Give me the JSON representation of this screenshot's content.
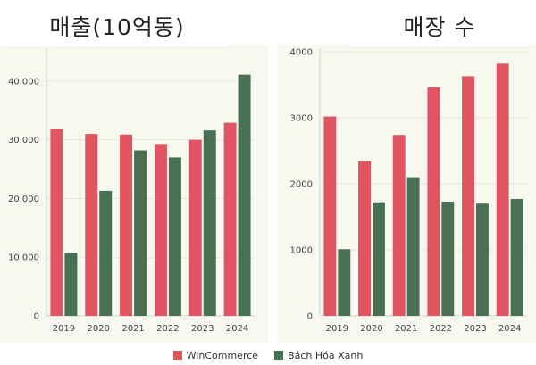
{
  "colors": {
    "wincommerce": "#e05561",
    "bachhoaxanh": "#4a7054",
    "grid": "#e4e7dd",
    "panel_bg": "#f7f9f1"
  },
  "legend": {
    "series1": "WinCommerce",
    "series2": "Bách Hóa Xanh"
  },
  "chart_data": [
    {
      "type": "bar",
      "title": "매출(10억동)",
      "categories": [
        "2019",
        "2020",
        "2021",
        "2022",
        "2023",
        "2024"
      ],
      "series": [
        {
          "name": "WinCommerce",
          "values": [
            31900,
            31000,
            30900,
            29300,
            30000,
            32900
          ]
        },
        {
          "name": "Bách Hóa Xanh",
          "values": [
            10800,
            21300,
            28200,
            27000,
            31600,
            41100
          ]
        }
      ],
      "ylim": [
        0,
        45000
      ],
      "yticks": [
        0,
        10000,
        20000,
        30000,
        40000
      ],
      "ytick_labels": [
        "0",
        "10.000",
        "20.000",
        "30.000",
        "40.000"
      ],
      "grid": true,
      "legend": "bottom"
    },
    {
      "type": "bar",
      "title": "매장 수",
      "categories": [
        "2019",
        "2020",
        "2021",
        "2022",
        "2023",
        "2024"
      ],
      "series": [
        {
          "name": "WinCommerce",
          "values": [
            3020,
            2350,
            2740,
            3460,
            3630,
            3820
          ]
        },
        {
          "name": "Bách Hóa Xanh",
          "values": [
            1010,
            1720,
            2100,
            1730,
            1700,
            1770
          ]
        }
      ],
      "ylim": [
        0,
        4000
      ],
      "yticks": [
        0,
        1000,
        2000,
        3000,
        4000
      ],
      "ytick_labels": [
        "0",
        "1000",
        "2000",
        "3000",
        "4000"
      ],
      "grid": true,
      "legend": "bottom"
    }
  ]
}
